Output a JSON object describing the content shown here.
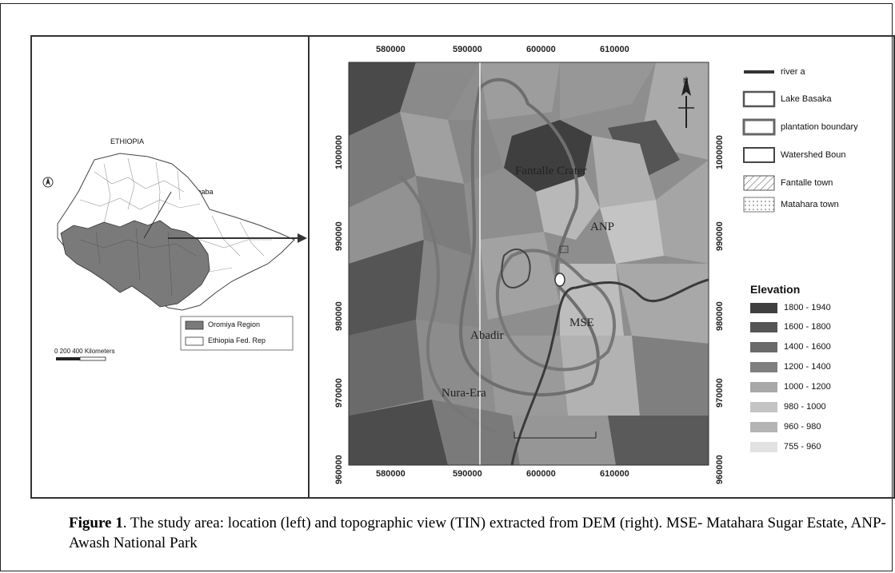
{
  "left_map": {
    "country_label": "ETHIOPIA",
    "city_label": "Addis Ababa",
    "scale_text": "0   200   400  Kilometers",
    "legend": [
      {
        "label": "Oromiya Region",
        "color": "#7a7a7a"
      },
      {
        "label": "Ethiopia Fed. Rep",
        "color": "#ffffff"
      }
    ]
  },
  "right_map": {
    "x_ticks": [
      "580000",
      "590000",
      "600000",
      "610000"
    ],
    "y_ticks": [
      "1000000",
      "990000",
      "980000",
      "970000",
      "960000"
    ],
    "area_labels": {
      "fantalle": "Fantalle Crater",
      "anp": "ANP",
      "abadir": "Abadir",
      "mse": "MSE",
      "nura_era": "Nura-Era"
    },
    "north_letter": "N",
    "legend": [
      {
        "label": "river a",
        "style": "line"
      },
      {
        "label": "Lake Basaka",
        "style": "outline"
      },
      {
        "label": "plantation boundary",
        "style": "outline"
      },
      {
        "label": "Watershed Boun",
        "style": "outline"
      },
      {
        "label": "Fantalle town",
        "style": "hatch"
      },
      {
        "label": "Matahara town",
        "style": "dots"
      }
    ],
    "elevation_title": "Elevation",
    "elevation": [
      {
        "label": "1800 - 1940",
        "color": "#3f3f3f"
      },
      {
        "label": "1600 - 1800",
        "color": "#555555"
      },
      {
        "label": "1400 - 1600",
        "color": "#6a6a6a"
      },
      {
        "label": "1200 - 1400",
        "color": "#7f7f7f"
      },
      {
        "label": "1000 - 1200",
        "color": "#a8a8a8"
      },
      {
        "label": "980 - 1000",
        "color": "#c4c4c4"
      },
      {
        "label": "960 - 980",
        "color": "#b4b4b4"
      },
      {
        "label": "755 - 960",
        "color": "#e2e2e2"
      }
    ]
  },
  "caption": {
    "label": "Figure 1",
    "text": ". The study area: location (left) and topographic view (TIN) extracted from DEM (right). MSE- Matahara Sugar Estate, ANP- Awash National Park"
  }
}
